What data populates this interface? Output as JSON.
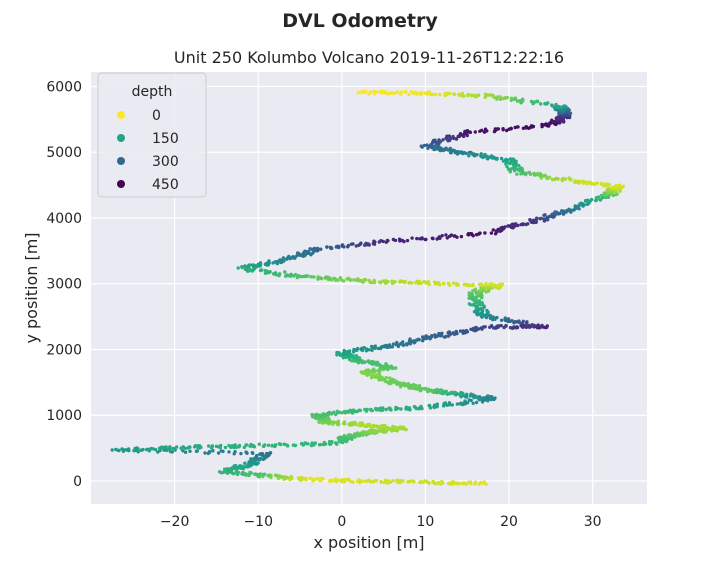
{
  "chart_data": {
    "type": "scatter",
    "suptitle": "DVL Odometry",
    "title": "Unit 250 Kolumbo Volcano 2019-11-26T12:22:16",
    "xlabel": "x position [m]",
    "ylabel": "y position [m]",
    "xlim": [
      -30,
      36.5
    ],
    "ylim": [
      -350,
      6220
    ],
    "xticks": [
      -20,
      -10,
      0,
      10,
      20,
      30
    ],
    "yticks": [
      0,
      1000,
      2000,
      3000,
      4000,
      5000,
      6000
    ],
    "grid": true,
    "legend": {
      "title": "depth",
      "placement": "top-left",
      "entries": [
        {
          "label": "0",
          "color": "#fde725"
        },
        {
          "label": "150",
          "color": "#21a585"
        },
        {
          "label": "300",
          "color": "#31688e"
        },
        {
          "label": "450",
          "color": "#440154"
        }
      ]
    },
    "hue": "depth",
    "colormap": [
      "#440154",
      "#482878",
      "#3e4989",
      "#31688e",
      "#26828e",
      "#1f9e89",
      "#35b779",
      "#6ece58",
      "#b5de2b",
      "#fde725"
    ],
    "depth_range": [
      0,
      480
    ],
    "track": [
      {
        "x": 17,
        "y": -40,
        "depth": 20
      },
      {
        "x": 10,
        "y": -20,
        "depth": 40
      },
      {
        "x": 2,
        "y": 0,
        "depth": 30
      },
      {
        "x": -4,
        "y": 20,
        "depth": 15
      },
      {
        "x": -10,
        "y": 90,
        "depth": 130
      },
      {
        "x": -14,
        "y": 150,
        "depth": 170
      },
      {
        "x": -11,
        "y": 260,
        "depth": 210
      },
      {
        "x": -9,
        "y": 420,
        "depth": 300
      },
      {
        "x": -27,
        "y": 470,
        "depth": 220
      },
      {
        "x": -19,
        "y": 510,
        "depth": 190
      },
      {
        "x": -10,
        "y": 540,
        "depth": 170
      },
      {
        "x": -1,
        "y": 570,
        "depth": 160
      },
      {
        "x": 1,
        "y": 680,
        "depth": 140
      },
      {
        "x": 4,
        "y": 750,
        "depth": 90
      },
      {
        "x": 7,
        "y": 800,
        "depth": 70
      },
      {
        "x": 2,
        "y": 860,
        "depth": 60
      },
      {
        "x": -2,
        "y": 900,
        "depth": 100
      },
      {
        "x": -3,
        "y": 1010,
        "depth": 140
      },
      {
        "x": 3,
        "y": 1080,
        "depth": 160
      },
      {
        "x": 10,
        "y": 1120,
        "depth": 190
      },
      {
        "x": 18,
        "y": 1250,
        "depth": 270
      },
      {
        "x": 14,
        "y": 1320,
        "depth": 200
      },
      {
        "x": 10,
        "y": 1390,
        "depth": 120
      },
      {
        "x": 6,
        "y": 1500,
        "depth": 110
      },
      {
        "x": 3,
        "y": 1650,
        "depth": 90
      },
      {
        "x": 6,
        "y": 1730,
        "depth": 130
      },
      {
        "x": 2,
        "y": 1830,
        "depth": 150
      },
      {
        "x": 0,
        "y": 1950,
        "depth": 200
      },
      {
        "x": 6,
        "y": 2060,
        "depth": 280
      },
      {
        "x": 11,
        "y": 2200,
        "depth": 330
      },
      {
        "x": 18,
        "y": 2340,
        "depth": 380
      },
      {
        "x": 24,
        "y": 2350,
        "depth": 430
      },
      {
        "x": 17,
        "y": 2500,
        "depth": 250
      },
      {
        "x": 16,
        "y": 2700,
        "depth": 170
      },
      {
        "x": 16,
        "y": 2880,
        "depth": 120
      },
      {
        "x": 19,
        "y": 2980,
        "depth": 30
      },
      {
        "x": 10,
        "y": 3010,
        "depth": 40
      },
      {
        "x": 3,
        "y": 3040,
        "depth": 80
      },
      {
        "x": -4,
        "y": 3100,
        "depth": 130
      },
      {
        "x": -12,
        "y": 3230,
        "depth": 180
      },
      {
        "x": -7,
        "y": 3350,
        "depth": 260
      },
      {
        "x": -3,
        "y": 3520,
        "depth": 320
      },
      {
        "x": 5,
        "y": 3640,
        "depth": 420
      },
      {
        "x": 17,
        "y": 3760,
        "depth": 460
      },
      {
        "x": 23,
        "y": 3950,
        "depth": 400
      },
      {
        "x": 27,
        "y": 4120,
        "depth": 300
      },
      {
        "x": 32,
        "y": 4350,
        "depth": 130
      },
      {
        "x": 33,
        "y": 4480,
        "depth": 30
      },
      {
        "x": 28,
        "y": 4560,
        "depth": 40
      },
      {
        "x": 21,
        "y": 4700,
        "depth": 140
      },
      {
        "x": 20,
        "y": 4880,
        "depth": 200
      },
      {
        "x": 14,
        "y": 5000,
        "depth": 270
      },
      {
        "x": 10,
        "y": 5100,
        "depth": 320
      },
      {
        "x": 15,
        "y": 5300,
        "depth": 450
      },
      {
        "x": 25,
        "y": 5420,
        "depth": 470
      },
      {
        "x": 27,
        "y": 5560,
        "depth": 400
      },
      {
        "x": 26,
        "y": 5700,
        "depth": 200
      },
      {
        "x": 18,
        "y": 5850,
        "depth": 80
      },
      {
        "x": 10,
        "y": 5900,
        "depth": 10
      },
      {
        "x": 2,
        "y": 5910,
        "depth": 0
      }
    ]
  }
}
